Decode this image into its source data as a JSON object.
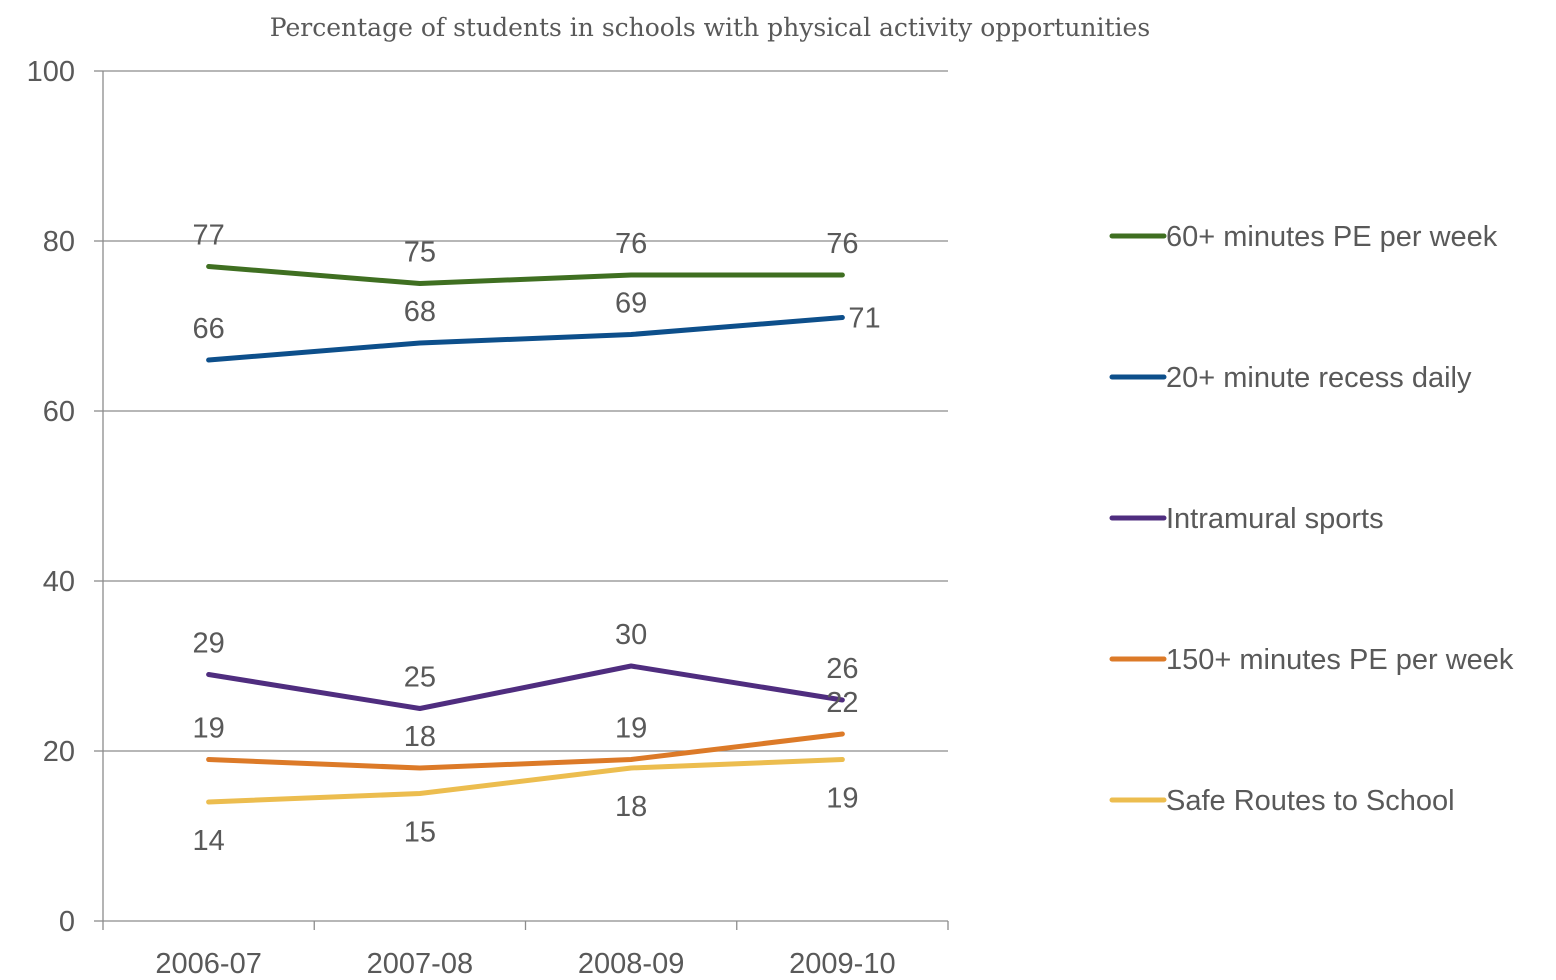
{
  "chart_data": {
    "type": "line",
    "title": "Percentage of students in schools with physical activity opportunities",
    "categories": [
      "2006-07",
      "2007-08",
      "2008-09",
      "2009-10"
    ],
    "ylim": [
      0,
      100
    ],
    "yticks": [
      0,
      20,
      40,
      60,
      80,
      100
    ],
    "grid": true,
    "legend_position": "right",
    "series": [
      {
        "name": "60+ minutes PE per week",
        "values": [
          77,
          75,
          76,
          76
        ],
        "color": "#3f6f21"
      },
      {
        "name": "20+ minute recess daily",
        "values": [
          66,
          68,
          69,
          71
        ],
        "color": "#0d4f8b"
      },
      {
        "name": "Intramural sports",
        "values": [
          29,
          25,
          30,
          26
        ],
        "color": "#4f2d7f"
      },
      {
        "name": "150+ minutes PE per week",
        "values": [
          19,
          18,
          19,
          22
        ],
        "color": "#dc7a28"
      },
      {
        "name": "Safe Routes to School",
        "values": [
          14,
          15,
          18,
          19
        ],
        "color": "#ecbd4f"
      }
    ]
  }
}
